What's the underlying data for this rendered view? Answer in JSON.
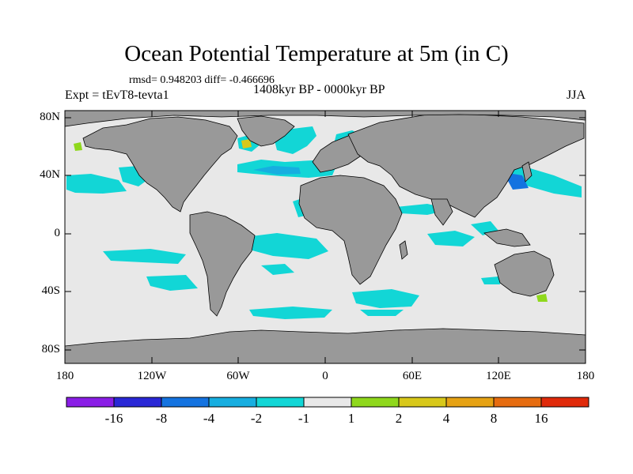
{
  "title": "Ocean Potential Temperature at 5m (in C)",
  "stats_text": "rmsd= 0.948203 diff= -0.466696",
  "experiment_text": "Expt = tEvT8-tevta1",
  "period_text": "1408kyr BP - 0000kyr BP",
  "season": "JJA",
  "lat_labels": [
    "80N",
    "40N",
    "0",
    "40S",
    "80S"
  ],
  "lon_labels": [
    "180",
    "120W",
    "60W",
    "0",
    "60E",
    "120E",
    "180"
  ],
  "colorbar": {
    "labels": [
      "-16",
      "-8",
      "-4",
      "-2",
      "-1",
      "1",
      "2",
      "4",
      "8",
      "16"
    ],
    "colors": [
      "#8a1ee6",
      "#2a28d6",
      "#1473e0",
      "#17aee0",
      "#12d6d6",
      "#e8e8e8",
      "#8fd81c",
      "#d8c81a",
      "#e6a214",
      "#e66c10",
      "#e02a0a"
    ]
  },
  "colors": {
    "ocean": "#e8e8e8",
    "land": "#999999",
    "anomaly_minus1_to_minus2": "#12d6d6",
    "anomaly_minus2_to_minus4": "#17aee0",
    "anomaly_minus4_to_minus8": "#1473e0",
    "anomaly_1_to_2": "#8fd81c",
    "anomaly_2_to_4": "#d8c81a"
  }
}
